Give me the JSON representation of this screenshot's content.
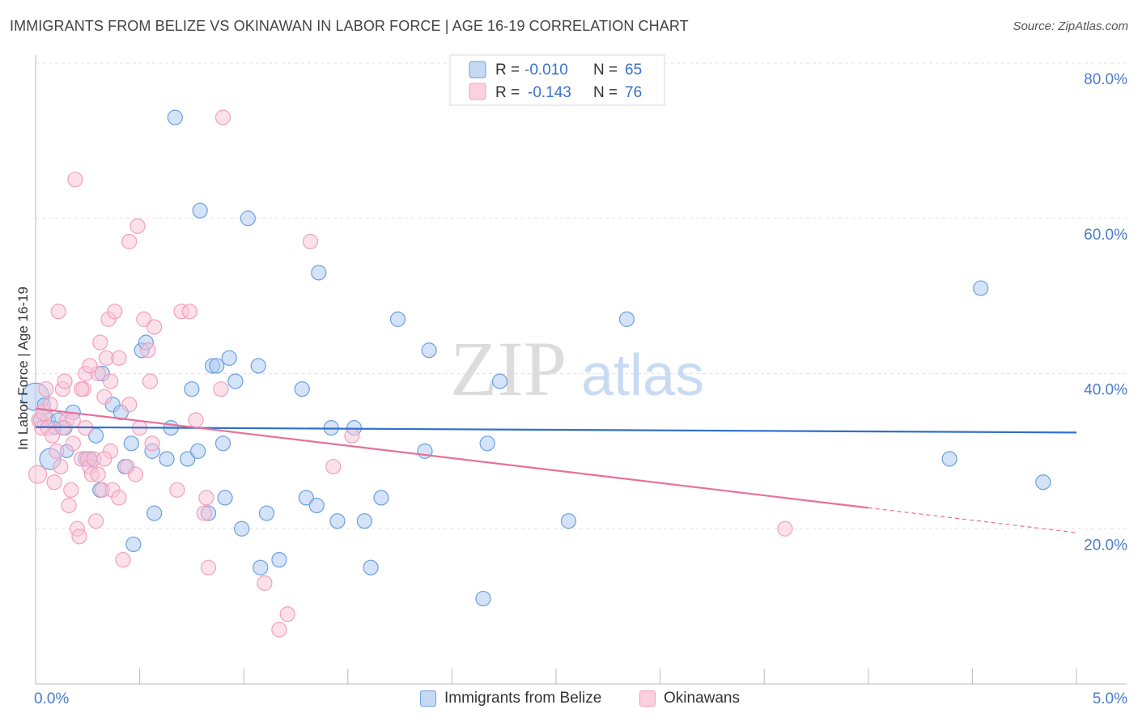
{
  "title": "IMMIGRANTS FROM BELIZE VS OKINAWAN IN LABOR FORCE | AGE 16-19 CORRELATION CHART",
  "source": "Source: ZipAtlas.com",
  "watermark": {
    "zip": "ZIP",
    "atlas": "atlas"
  },
  "legend_top": {
    "rows": [
      {
        "r_label": "R =",
        "r_value": "-0.010",
        "n_label": "N =",
        "n_value": "65"
      },
      {
        "r_label": "R =",
        "r_value": "-0.143",
        "n_label": "N =",
        "n_value": "76"
      }
    ]
  },
  "chart_data": {
    "type": "scatter",
    "title": "IMMIGRANTS FROM BELIZE VS OKINAWAN IN LABOR FORCE | AGE 16-19 CORRELATION CHART",
    "xlabel": "",
    "ylabel": "In Labor Force | Age 16-19",
    "xlim": [
      0,
      5
    ],
    "ylim": [
      0,
      80
    ],
    "x_tick_labels": [
      "0.0%",
      "5.0%"
    ],
    "y_tick_values": [
      20,
      40,
      60,
      80
    ],
    "y_tick_labels": [
      "20.0%",
      "40.0%",
      "60.0%",
      "80.0%"
    ],
    "colors": {
      "blue": "#6b9fe0",
      "blue_line": "#2f6fcf",
      "pink": "#f0a0bc",
      "pink_line": "#e8709a",
      "axis_text": "#4a7cc9"
    },
    "series": [
      {
        "name": "Immigrants from Belize",
        "color": "#6b9fe0",
        "trend": {
          "x": [
            0,
            5
          ],
          "y": [
            33.1,
            32.4
          ],
          "dashed_after": null
        },
        "points": [
          [
            0.0,
            37,
            16
          ],
          [
            0.07,
            29,
            12
          ],
          [
            0.06,
            34,
            8
          ],
          [
            0.11,
            34,
            8
          ],
          [
            0.14,
            33,
            8
          ],
          [
            0.09,
            33,
            7
          ],
          [
            0.18,
            35,
            8
          ],
          [
            0.24,
            29,
            8
          ],
          [
            0.26,
            29,
            8
          ],
          [
            0.29,
            32,
            8
          ],
          [
            0.31,
            25,
            8
          ],
          [
            0.32,
            40,
            8
          ],
          [
            0.37,
            36,
            8
          ],
          [
            0.41,
            35,
            8
          ],
          [
            0.43,
            28,
            8
          ],
          [
            0.46,
            31,
            8
          ],
          [
            0.47,
            18,
            8
          ],
          [
            0.51,
            43,
            8
          ],
          [
            0.53,
            44,
            8
          ],
          [
            0.56,
            30,
            8
          ],
          [
            0.57,
            22,
            8
          ],
          [
            0.63,
            29,
            8
          ],
          [
            0.65,
            33,
            8
          ],
          [
            0.67,
            73,
            8
          ],
          [
            0.73,
            29,
            8
          ],
          [
            0.75,
            38,
            8
          ],
          [
            0.78,
            30,
            8
          ],
          [
            0.79,
            61,
            8
          ],
          [
            0.83,
            22,
            8
          ],
          [
            0.85,
            41,
            8
          ],
          [
            0.87,
            41,
            8
          ],
          [
            0.9,
            31,
            8
          ],
          [
            0.91,
            24,
            8
          ],
          [
            0.93,
            42,
            8
          ],
          [
            0.96,
            39,
            8
          ],
          [
            0.99,
            20,
            8
          ],
          [
            1.02,
            60,
            8
          ],
          [
            1.07,
            41,
            8
          ],
          [
            1.08,
            15,
            8
          ],
          [
            1.11,
            22,
            8
          ],
          [
            1.17,
            16,
            8
          ],
          [
            1.28,
            38,
            8
          ],
          [
            1.3,
            24,
            8
          ],
          [
            1.35,
            23,
            8
          ],
          [
            1.36,
            53,
            8
          ],
          [
            1.42,
            33,
            8
          ],
          [
            1.45,
            21,
            8
          ],
          [
            1.53,
            33,
            8
          ],
          [
            1.58,
            21,
            8
          ],
          [
            1.61,
            15,
            8
          ],
          [
            1.66,
            24,
            8
          ],
          [
            1.74,
            47,
            8
          ],
          [
            1.87,
            30,
            8
          ],
          [
            1.89,
            43,
            8
          ],
          [
            2.15,
            11,
            8
          ],
          [
            2.17,
            31,
            8
          ],
          [
            2.23,
            39,
            8
          ],
          [
            2.56,
            21,
            8
          ],
          [
            2.84,
            47,
            8
          ],
          [
            4.39,
            29,
            8
          ],
          [
            4.54,
            51,
            8
          ],
          [
            4.84,
            26,
            8
          ],
          [
            0.02,
            34,
            7
          ],
          [
            0.04,
            36,
            7
          ],
          [
            0.15,
            30,
            7
          ]
        ]
      },
      {
        "name": "Okinawans",
        "color": "#f0a0bc",
        "trend": {
          "x": [
            0,
            5
          ],
          "y": [
            35.5,
            19.5
          ],
          "dashed_after": 4.0
        },
        "points": [
          [
            0.01,
            27,
            10
          ],
          [
            0.02,
            34,
            9
          ],
          [
            0.03,
            33,
            8
          ],
          [
            0.04,
            35,
            9
          ],
          [
            0.06,
            33,
            8
          ],
          [
            0.07,
            36,
            8
          ],
          [
            0.08,
            32,
            8
          ],
          [
            0.09,
            26,
            8
          ],
          [
            0.11,
            48,
            8
          ],
          [
            0.12,
            28,
            8
          ],
          [
            0.13,
            38,
            8
          ],
          [
            0.14,
            39,
            8
          ],
          [
            0.15,
            34,
            8
          ],
          [
            0.16,
            23,
            8
          ],
          [
            0.17,
            25,
            8
          ],
          [
            0.18,
            34,
            8
          ],
          [
            0.19,
            65,
            8
          ],
          [
            0.2,
            20,
            8
          ],
          [
            0.21,
            19,
            8
          ],
          [
            0.22,
            29,
            8
          ],
          [
            0.23,
            38,
            8
          ],
          [
            0.24,
            40,
            8
          ],
          [
            0.25,
            29,
            8
          ],
          [
            0.26,
            28,
            8
          ],
          [
            0.27,
            27,
            8
          ],
          [
            0.28,
            29,
            8
          ],
          [
            0.29,
            21,
            8
          ],
          [
            0.3,
            40,
            8
          ],
          [
            0.31,
            44,
            8
          ],
          [
            0.32,
            25,
            8
          ],
          [
            0.33,
            37,
            8
          ],
          [
            0.34,
            42,
            8
          ],
          [
            0.35,
            47,
            8
          ],
          [
            0.36,
            39,
            8
          ],
          [
            0.37,
            25,
            8
          ],
          [
            0.38,
            48,
            8
          ],
          [
            0.4,
            42,
            8
          ],
          [
            0.42,
            16,
            8
          ],
          [
            0.44,
            28,
            8
          ],
          [
            0.45,
            57,
            8
          ],
          [
            0.48,
            27,
            8
          ],
          [
            0.49,
            59,
            8
          ],
          [
            0.5,
            33,
            8
          ],
          [
            0.52,
            47,
            8
          ],
          [
            0.54,
            43,
            8
          ],
          [
            0.55,
            39,
            8
          ],
          [
            0.56,
            31,
            8
          ],
          [
            0.57,
            46,
            8
          ],
          [
            0.68,
            25,
            8
          ],
          [
            0.7,
            48,
            8
          ],
          [
            0.74,
            48,
            8
          ],
          [
            0.77,
            34,
            8
          ],
          [
            0.81,
            22,
            8
          ],
          [
            0.82,
            24,
            8
          ],
          [
            0.83,
            15,
            8
          ],
          [
            0.89,
            38,
            8
          ],
          [
            0.9,
            73,
            8
          ],
          [
            1.1,
            13,
            8
          ],
          [
            1.17,
            7,
            8
          ],
          [
            1.21,
            9,
            8
          ],
          [
            1.32,
            57,
            8
          ],
          [
            1.43,
            28,
            8
          ],
          [
            1.52,
            32,
            8
          ],
          [
            3.6,
            20,
            8
          ],
          [
            0.05,
            38,
            8
          ],
          [
            0.1,
            30,
            8
          ],
          [
            0.13,
            33,
            8
          ],
          [
            0.22,
            38,
            8
          ],
          [
            0.26,
            41,
            8
          ],
          [
            0.3,
            27,
            8
          ],
          [
            0.36,
            30,
            8
          ],
          [
            0.4,
            24,
            8
          ],
          [
            0.18,
            31,
            8
          ],
          [
            0.24,
            33,
            8
          ],
          [
            0.33,
            29,
            8
          ],
          [
            0.45,
            36,
            8
          ]
        ]
      }
    ]
  },
  "legend_bottom": {
    "items": [
      {
        "label": "Immigrants from Belize",
        "fill": "#c5d9f4",
        "stroke": "#6b9fe0"
      },
      {
        "label": "Okinawans",
        "fill": "#fcd0de",
        "stroke": "#f0a0bc"
      }
    ]
  }
}
